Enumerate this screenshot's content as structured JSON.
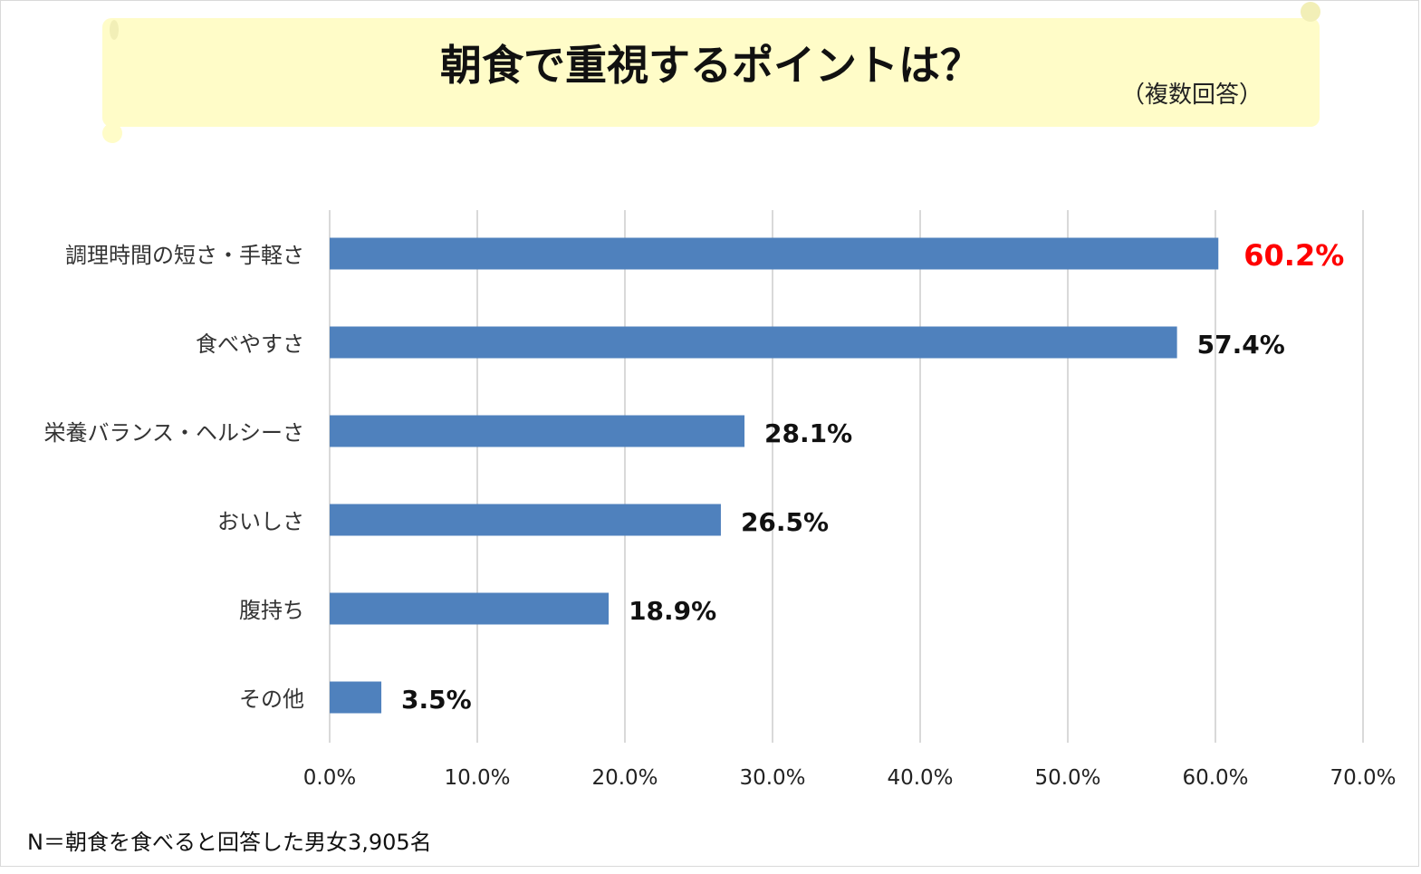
{
  "chart_data": {
    "type": "bar",
    "orientation": "horizontal",
    "title": "朝食で重視するポイントは？",
    "subtitle": "（複数回答）",
    "categories": [
      "調理時間の短さ・手軽さ",
      "食べやすさ",
      "栄養バランス・ヘルシーさ",
      "おいしさ",
      "腹持ち",
      "その他"
    ],
    "values": [
      60.2,
      57.4,
      28.1,
      26.5,
      18.9,
      3.5
    ],
    "value_labels": [
      "60.2%",
      "57.4%",
      "28.1%",
      "26.5%",
      "18.9%",
      "3.5%"
    ],
    "xlim": [
      0,
      70
    ],
    "ticks": [
      0,
      10,
      20,
      30,
      40,
      50,
      60,
      70
    ],
    "tick_labels": [
      "0.0%",
      "10.0%",
      "20.0%",
      "30.0%",
      "40.0%",
      "50.0%",
      "60.0%",
      "70.0%"
    ],
    "grid": "vertical",
    "bar_color": "#4f81bd",
    "highlight_label_color": "#ff0000",
    "label_color": "#111111",
    "footnote": "N＝朝食を食べると回答した男女3,905名"
  }
}
